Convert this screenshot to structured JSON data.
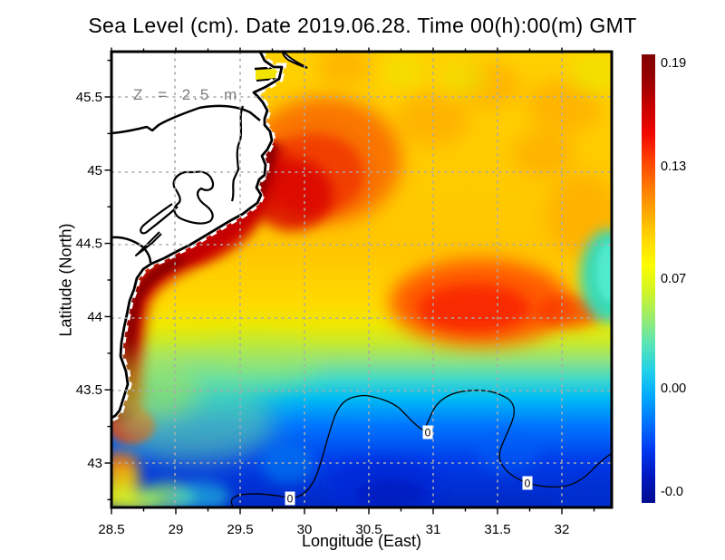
{
  "chart_data": {
    "type": "heatmap",
    "title": "Sea Level (cm). Date 2019.06.28. Time 00(h):00(m) GMT",
    "annotation": "Z = 2.5 m",
    "xlabel": "Longitude (East)",
    "ylabel": "Latitude (North)",
    "xlim": [
      28.5,
      32.39
    ],
    "ylim": [
      42.7,
      45.81
    ],
    "grid": true,
    "xticks": [
      "28.5",
      "29",
      "29.5",
      "30",
      "30.5",
      "31",
      "31.5",
      "32"
    ],
    "xtick_values": [
      28.5,
      29,
      29.5,
      30,
      30.5,
      31,
      31.5,
      32
    ],
    "yticks": [
      "43",
      "43.5",
      "44",
      "44.5",
      "45",
      "45.5"
    ],
    "ytick_values": [
      43,
      43.5,
      44,
      44.5,
      45,
      45.5
    ],
    "colorbar": {
      "ticks": [
        "0.19",
        "0.13",
        "0.07",
        "0.00",
        "-0.0"
      ],
      "colormap": "jet",
      "colors": [
        "#800000",
        "#9B0000",
        "#C80000",
        "#F10800",
        "#FF4000",
        "#FF7800",
        "#FFA800",
        "#FFD800",
        "#FCFC00",
        "#D0F428",
        "#98EC70",
        "#58E4B8",
        "#20D0E8",
        "#00A8FF",
        "#0070FF",
        "#0038F0",
        "#0018C0",
        "#000C90"
      ]
    },
    "contour": {
      "level_label": "0"
    },
    "regions": [
      {
        "name": "west-coastal-maximum-band",
        "approx_value": 0.19
      },
      {
        "name": "offshore-red-maximum",
        "lon": 31.2,
        "lat": 44.1,
        "approx_value": 0.16
      },
      {
        "name": "north-east-orange-plateau",
        "approx_value": 0.11
      },
      {
        "name": "zero-contour-belt",
        "approx_value": 0.0
      },
      {
        "name": "southern-negative-pool",
        "approx_value": -0.04
      },
      {
        "name": "east-edge-cyan-intrusion",
        "lon": 32.3,
        "lat": 44.2,
        "approx_value": 0.04
      }
    ]
  }
}
